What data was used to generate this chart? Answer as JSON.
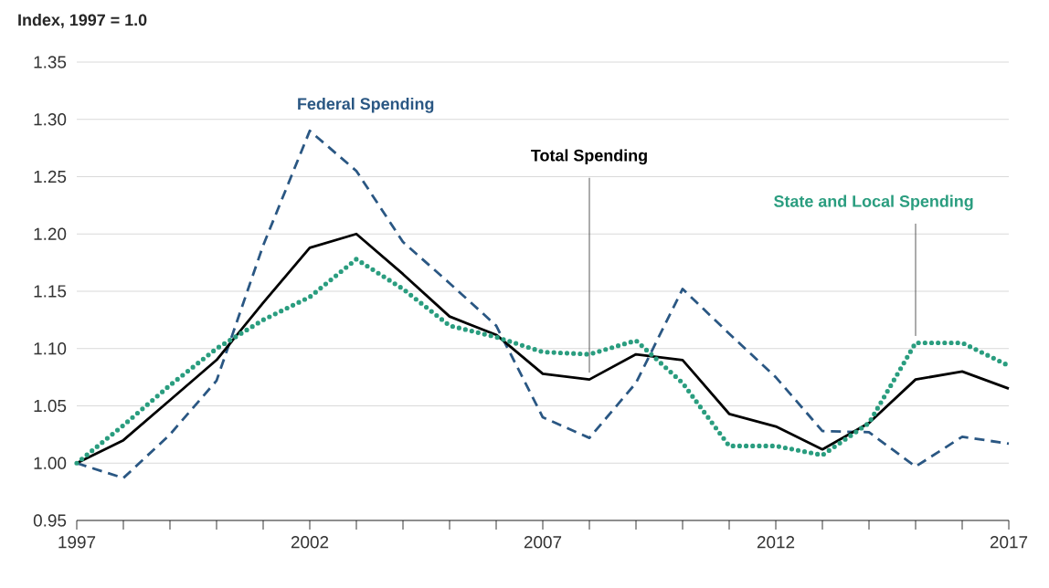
{
  "chart_data": {
    "type": "line",
    "ylabel": "Index, 1997 = 1.0",
    "x": [
      1997,
      1998,
      1999,
      2000,
      2001,
      2002,
      2003,
      2004,
      2005,
      2006,
      2007,
      2008,
      2009,
      2010,
      2011,
      2012,
      2013,
      2014,
      2015,
      2016,
      2017
    ],
    "series": [
      {
        "name": "Federal Spending",
        "color": "#2a5783",
        "line_style": "dashed",
        "values": [
          1.0,
          0.987,
          1.025,
          1.072,
          1.19,
          1.29,
          1.255,
          1.193,
          1.157,
          1.12,
          1.04,
          1.022,
          1.07,
          1.152,
          1.113,
          1.075,
          1.028,
          1.027,
          0.997,
          1.023,
          1.017
        ]
      },
      {
        "name": "Total Spending",
        "color": "#000000",
        "line_style": "solid",
        "values": [
          1.0,
          1.02,
          1.055,
          1.09,
          1.14,
          1.188,
          1.2,
          1.165,
          1.128,
          1.112,
          1.078,
          1.073,
          1.095,
          1.09,
          1.043,
          1.032,
          1.012,
          1.035,
          1.073,
          1.08,
          1.065
        ]
      },
      {
        "name": "State and Local Spending",
        "color": "#2a9d7f",
        "line_style": "dotted",
        "values": [
          1.0,
          1.033,
          1.068,
          1.1,
          1.125,
          1.145,
          1.178,
          1.152,
          1.12,
          1.11,
          1.097,
          1.095,
          1.107,
          1.07,
          1.015,
          1.015,
          1.007,
          1.035,
          1.105,
          1.105,
          1.085
        ]
      }
    ],
    "xlim": [
      1997,
      2017
    ],
    "ylim": [
      0.95,
      1.35
    ],
    "xticks": [
      1997,
      {
        "value": 1998,
        "label": null
      },
      {
        "value": 1999,
        "label": null
      },
      {
        "value": 2000,
        "label": null
      },
      {
        "value": 2001,
        "label": null
      },
      2002,
      {
        "value": 2003,
        "label": null
      },
      {
        "value": 2004,
        "label": null
      },
      {
        "value": 2005,
        "label": null
      },
      {
        "value": 2006,
        "label": null
      },
      2007,
      {
        "value": 2008,
        "label": null
      },
      {
        "value": 2009,
        "label": null
      },
      {
        "value": 2010,
        "label": null
      },
      {
        "value": 2011,
        "label": null
      },
      2012,
      {
        "value": 2013,
        "label": null
      },
      {
        "value": 2014,
        "label": null
      },
      {
        "value": 2015,
        "label": null
      },
      {
        "value": 2016,
        "label": null
      },
      2017
    ],
    "yticks": [
      {
        "value": 0.95,
        "label": "0.95"
      },
      {
        "value": 1.0,
        "label": "1.00"
      },
      {
        "value": 1.05,
        "label": "1.05"
      },
      {
        "value": 1.1,
        "label": "1.10"
      },
      {
        "value": 1.15,
        "label": "1.15"
      },
      {
        "value": 1.2,
        "label": "1.20"
      },
      {
        "value": 1.25,
        "label": "1.25"
      },
      {
        "value": 1.3,
        "label": "1.30"
      },
      {
        "value": 1.35,
        "label": "1.35"
      }
    ],
    "grid": "y",
    "marker": "none"
  }
}
